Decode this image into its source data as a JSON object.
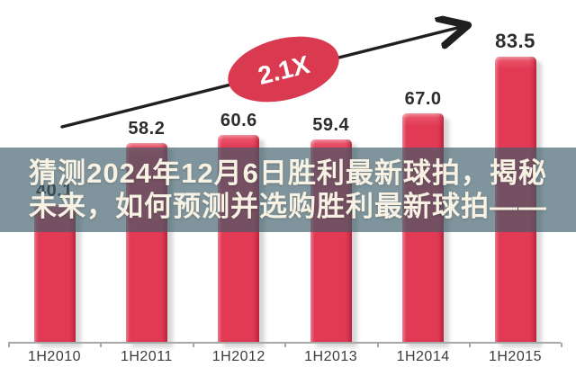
{
  "overlay": {
    "line1": "猜测2024年12月6日胜利最新球拍，揭秘",
    "line2": "未来，如何预测并选购胜利最新球拍——",
    "text_color": "#f7f2e4",
    "band_color": "rgba(60,93,105,0.66)"
  },
  "chart_data": {
    "type": "bar",
    "categories": [
      "1H2010",
      "1H2011",
      "1H2012",
      "1H2013",
      "1H2014",
      "1H2015"
    ],
    "values": [
      40.1,
      58.2,
      60.6,
      59.4,
      67.0,
      83.5
    ],
    "value_labels": [
      "40.1",
      "58.2",
      "60.6",
      "59.4",
      "67.0",
      "83.5"
    ],
    "annotation": {
      "label": "2.1X"
    },
    "title": "",
    "xlabel": "",
    "ylabel": "",
    "ylim": [
      0,
      90
    ],
    "grid": false,
    "legend": "none",
    "obscured_labels": [
      0
    ],
    "colors": {
      "bar": "#e23a55",
      "bar_highlight": "#f5808f",
      "bar_edge_dark": "#b7243f",
      "axis": "#a8a8a8",
      "value_label": "#2d2d2d",
      "arrow": "#1f1f1f",
      "ellipse": "#d93a50",
      "annotation_text": "#ffffff"
    }
  }
}
